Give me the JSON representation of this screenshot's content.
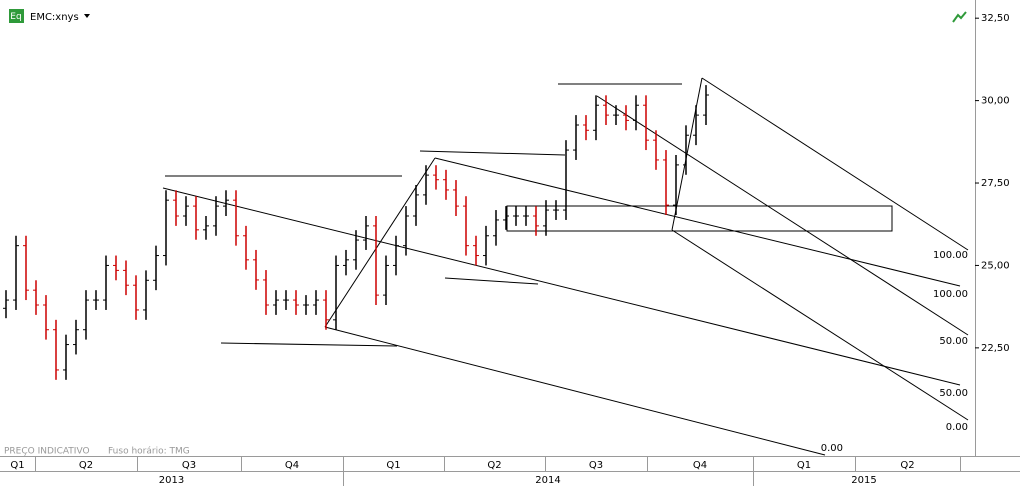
{
  "header": {
    "symbol": "EMC:xnys",
    "icon": "Eq"
  },
  "footer": {
    "note": "PREÇO INDICATIVO",
    "timezone": "Fuso horário: TMG"
  },
  "chart_data": {
    "type": "ohlc",
    "categories": [
      null,
      null,
      null,
      null,
      null,
      null,
      null,
      null,
      null,
      null,
      null,
      null,
      null,
      null,
      null,
      null,
      null,
      null,
      null,
      null,
      null,
      null,
      null,
      null,
      null,
      null,
      null,
      null,
      null,
      null,
      null,
      null,
      null,
      null,
      null,
      null,
      null,
      null,
      null,
      null,
      null,
      null,
      null,
      null,
      null,
      null,
      null,
      null,
      null,
      null,
      null,
      null,
      null,
      null,
      null,
      null,
      null,
      null,
      null,
      null,
      null,
      null,
      null,
      null,
      null,
      null,
      null,
      null,
      null,
      null,
      null
    ],
    "open": [
      23.7,
      23.95,
      25.6,
      24.25,
      23.8,
      23.05,
      21.83,
      22.6,
      23.05,
      23.95,
      23.95,
      25.0,
      24.85,
      24.4,
      23.65,
      24.55,
      25.3,
      26.98,
      26.5,
      26.8,
      26.08,
      26.2,
      26.8,
      26.98,
      25.9,
      25.17,
      24.56,
      23.8,
      23.95,
      23.95,
      23.8,
      23.8,
      23.95,
      23.35,
      25.0,
      25.17,
      25.77,
      26.2,
      24.1,
      25.0,
      25.6,
      26.5,
      27.14,
      27.74,
      27.6,
      27.29,
      26.8,
      25.6,
      25.3,
      25.9,
      26.38,
      26.5,
      26.5,
      26.5,
      26.2,
      26.68,
      26.68,
      28.5,
      29.26,
      29.1,
      29.86,
      29.56,
      29.56,
      29.4,
      29.86,
      28.8,
      28.2,
      26.83,
      28.05,
      28.95,
      29.56
    ],
    "high": [
      24.25,
      25.9,
      25.9,
      24.55,
      24.1,
      23.35,
      22.9,
      23.35,
      24.25,
      24.25,
      25.3,
      25.3,
      25.15,
      24.7,
      24.85,
      25.6,
      27.28,
      27.28,
      27.1,
      27.1,
      26.5,
      27.1,
      27.28,
      27.28,
      26.2,
      25.47,
      24.86,
      24.25,
      24.25,
      24.25,
      24.1,
      24.25,
      24.25,
      25.3,
      25.47,
      26.07,
      26.5,
      26.5,
      25.3,
      25.9,
      26.8,
      27.44,
      28.04,
      28.04,
      27.9,
      27.59,
      27.1,
      25.9,
      26.2,
      26.68,
      26.8,
      26.8,
      26.8,
      26.8,
      26.98,
      26.98,
      28.8,
      29.56,
      29.56,
      30.16,
      30.16,
      29.86,
      29.86,
      30.16,
      30.16,
      29.1,
      28.5,
      28.35,
      29.25,
      29.86,
      30.47
    ],
    "low": [
      23.4,
      23.65,
      23.95,
      23.5,
      22.75,
      21.53,
      21.53,
      22.3,
      22.75,
      23.65,
      23.65,
      24.55,
      24.1,
      23.35,
      23.35,
      24.25,
      25.0,
      26.2,
      26.2,
      25.78,
      25.78,
      25.9,
      26.5,
      25.6,
      24.87,
      24.26,
      23.5,
      23.5,
      23.65,
      23.5,
      23.5,
      23.5,
      23.05,
      23.05,
      24.7,
      24.87,
      25.47,
      23.8,
      23.8,
      24.7,
      25.3,
      26.2,
      26.84,
      27.3,
      26.99,
      26.5,
      25.3,
      25.0,
      25.0,
      25.6,
      26.08,
      26.2,
      26.2,
      25.9,
      25.9,
      26.38,
      26.38,
      28.2,
      28.8,
      28.8,
      29.26,
      29.26,
      29.1,
      29.1,
      28.5,
      27.9,
      26.53,
      26.53,
      27.75,
      28.65,
      29.26
    ],
    "close": [
      23.95,
      25.6,
      24.25,
      23.8,
      23.05,
      21.83,
      22.6,
      23.05,
      23.95,
      23.95,
      25.0,
      24.85,
      24.4,
      23.65,
      24.55,
      25.3,
      26.98,
      26.5,
      26.8,
      26.08,
      26.2,
      26.8,
      26.98,
      25.9,
      25.17,
      24.56,
      23.8,
      23.95,
      23.95,
      23.8,
      23.8,
      23.95,
      23.35,
      25.0,
      25.17,
      25.77,
      26.2,
      24.1,
      25.0,
      25.6,
      26.5,
      27.14,
      27.74,
      27.6,
      27.29,
      26.8,
      25.6,
      25.3,
      25.9,
      26.38,
      26.5,
      26.5,
      26.5,
      26.2,
      26.68,
      26.68,
      28.5,
      29.26,
      29.1,
      29.86,
      29.56,
      29.56,
      29.4,
      29.86,
      28.8,
      28.2,
      26.83,
      28.05,
      28.95,
      29.56,
      30.17
    ],
    "up_color": "#000000",
    "down_color": "#cc0000",
    "ylim": [
      19.25,
      32.9
    ],
    "yticks": [
      {
        "value": 22.5,
        "label": "22,50"
      },
      {
        "value": 25,
        "label": "25,00"
      },
      {
        "value": 27.5,
        "label": "27,50"
      },
      {
        "value": 30,
        "label": "30,00"
      },
      {
        "value": 32.5,
        "label": "32,50"
      }
    ],
    "quarters": [
      "Q1",
      "Q2",
      "Q3",
      "Q4",
      "Q1",
      "Q2",
      "Q3",
      "Q4",
      "Q1",
      "Q2"
    ],
    "years": [
      "2013",
      "2014",
      "2015"
    ],
    "annotations": [
      {
        "value": 100,
        "label": "100.00"
      },
      {
        "value": 100,
        "label": "100.00"
      },
      {
        "value": 50,
        "label": "50.00"
      },
      {
        "value": 50,
        "label": "50.00"
      },
      {
        "value": 0,
        "label": "0.00"
      },
      {
        "value": 0,
        "label": "0.00"
      }
    ]
  }
}
